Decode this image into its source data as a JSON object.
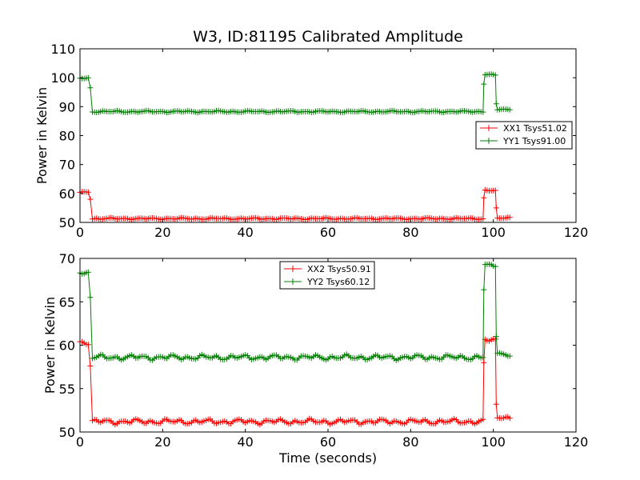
{
  "chart_data": [
    {
      "type": "line",
      "title": "W3, ID:81195 Calibrated Amplitude",
      "xlabel": "",
      "ylabel": "Power in Kelvin",
      "xlim": [
        0,
        120
      ],
      "ylim": [
        50,
        110
      ],
      "xticks": [
        "0",
        "20",
        "40",
        "60",
        "80",
        "100",
        "120"
      ],
      "yticks": [
        "50",
        "60",
        "70",
        "80",
        "90",
        "100",
        "110"
      ],
      "grid": false,
      "legend_position": "center-right",
      "marker": "+",
      "series": [
        {
          "name": "XX1 Tsys51.02",
          "color": "#ff0000",
          "segments": [
            {
              "x0": 0,
              "x1": 2.0,
              "y": 60.4
            },
            {
              "x0": 3.0,
              "x1": 97.5,
              "y": 51.3
            },
            {
              "x0": 98.0,
              "x1": 100.5,
              "y": 61.0
            },
            {
              "x0": 101.0,
              "x1": 104.0,
              "y": 51.5
            }
          ],
          "transitions": [
            [
              2.5,
              58.0
            ],
            [
              97.7,
              58.5
            ],
            [
              100.7,
              55.0
            ]
          ]
        },
        {
          "name": "YY1 Tsys91.00",
          "color": "#008000",
          "segments": [
            {
              "x0": 0,
              "x1": 2.0,
              "y": 99.8
            },
            {
              "x0": 3.0,
              "x1": 97.5,
              "y": 88.3
            },
            {
              "x0": 98.0,
              "x1": 100.5,
              "y": 101.0
            },
            {
              "x0": 101.0,
              "x1": 104.0,
              "y": 89.0
            }
          ],
          "transitions": [
            [
              2.5,
              96.5
            ],
            [
              97.7,
              97.8
            ],
            [
              100.7,
              91.0
            ]
          ]
        }
      ]
    },
    {
      "type": "line",
      "title": "",
      "xlabel": "Time (seconds)",
      "ylabel": "Power in Kelvin",
      "xlim": [
        0,
        120
      ],
      "ylim": [
        50,
        70
      ],
      "xticks": [
        "0",
        "20",
        "40",
        "60",
        "80",
        "100",
        "120"
      ],
      "yticks": [
        "50",
        "55",
        "60",
        "65",
        "70"
      ],
      "grid": false,
      "legend_position": "upper-center",
      "marker": "+",
      "series": [
        {
          "name": "XX2 Tsys50.91",
          "color": "#ff0000",
          "segments": [
            {
              "x0": 0,
              "x1": 2.0,
              "y": 60.2
            },
            {
              "x0": 3.0,
              "x1": 97.5,
              "y": 51.2
            },
            {
              "x0": 98.0,
              "x1": 100.5,
              "y": 60.7
            },
            {
              "x0": 101.0,
              "x1": 104.0,
              "y": 51.6
            }
          ],
          "transitions": [
            [
              2.5,
              57.6
            ],
            [
              97.7,
              58.0
            ],
            [
              100.7,
              53.2
            ]
          ]
        },
        {
          "name": "YY2 Tsys60.12",
          "color": "#008000",
          "segments": [
            {
              "x0": 0,
              "x1": 2.0,
              "y": 68.3
            },
            {
              "x0": 3.0,
              "x1": 97.5,
              "y": 58.6
            },
            {
              "x0": 98.0,
              "x1": 100.5,
              "y": 69.3
            },
            {
              "x0": 101.0,
              "x1": 104.0,
              "y": 58.9
            }
          ],
          "transitions": [
            [
              2.5,
              65.5
            ],
            [
              97.7,
              66.4
            ],
            [
              100.7,
              61.0
            ]
          ]
        }
      ]
    }
  ]
}
